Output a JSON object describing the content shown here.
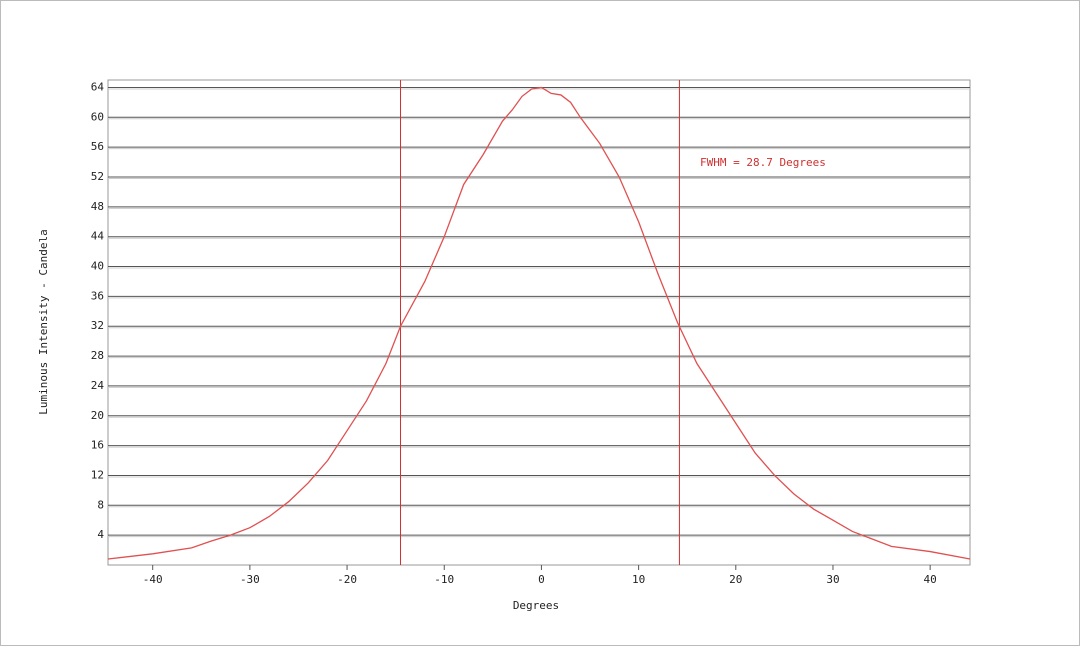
{
  "chart_data": {
    "type": "line",
    "xlabel": "Degrees",
    "ylabel": "Luminous Intensity - Candela",
    "annotation": "FWHM = 28.7 Degrees",
    "x": [
      -44.6,
      -40,
      -36,
      -34,
      -32,
      -30,
      -28,
      -26,
      -24,
      -22,
      -20,
      -18,
      -16,
      -14.5,
      -12,
      -10,
      -8,
      -6,
      -4,
      -3,
      -2,
      -1,
      0,
      1,
      2,
      3,
      4,
      6,
      8,
      10,
      12,
      14,
      16,
      18,
      20,
      22,
      24,
      26,
      28,
      30,
      32,
      34,
      36,
      40,
      44.1
    ],
    "series": [
      {
        "color": "#e05050",
        "values": [
          0.8,
          1.5,
          2.3,
          3.2,
          4,
          5,
          6.5,
          8.5,
          11,
          14,
          18,
          22,
          27,
          32,
          38,
          44,
          51,
          55,
          59.5,
          61,
          62.8,
          63.8,
          64,
          63.2,
          63,
          62,
          60,
          56.5,
          52,
          46,
          39,
          32.5,
          27,
          23,
          19,
          15,
          12,
          9.5,
          7.5,
          6,
          4.5,
          3.5,
          2.5,
          1.8,
          0.8
        ]
      }
    ],
    "vlines": [
      -14.5,
      14.2
    ],
    "vline_color": "#d03030",
    "xlim": [
      -44.6,
      44.1
    ],
    "ylim": [
      0,
      65
    ],
    "xticks": [
      -40,
      -30,
      -20,
      -10,
      0,
      10,
      20,
      30,
      40
    ],
    "yticks": [
      4,
      8,
      12,
      16,
      20,
      24,
      28,
      32,
      36,
      40,
      44,
      48,
      52,
      56,
      60,
      64
    ],
    "grid": true
  }
}
